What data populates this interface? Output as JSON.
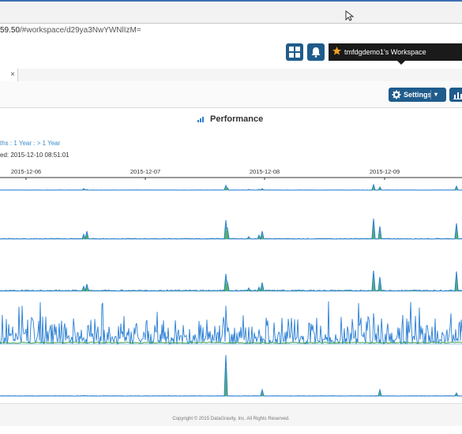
{
  "browser": {
    "url_host": "59.50",
    "url_path": "/#workspace/d29ya3NwYWNlIzM="
  },
  "header": {
    "workspace_label": "tmfdgdemo1's Workspace"
  },
  "tab": {
    "close_label": "×"
  },
  "toolbar": {
    "settings_label": "Settings",
    "settings_caret": "▾"
  },
  "panel": {
    "title": "Performance",
    "range_links": "ths : 1 Year : > 1 Year",
    "last_updated": "ed: 2015-12-10 08:51:01"
  },
  "chart_data": {
    "type": "area",
    "x": [
      "2015-12-06",
      "2015-12-07",
      "2015-12-08",
      "2015-12-09"
    ],
    "series_colors": {
      "green": "#3aa34a",
      "blue": "#2a7fd4"
    }
  },
  "footer": {
    "copyright": "Copyright © 2015 DataGravity, Inc. All Rights Reserved."
  },
  "colors": {
    "accent": "#1f5c8c",
    "link": "#3a8cc9"
  }
}
